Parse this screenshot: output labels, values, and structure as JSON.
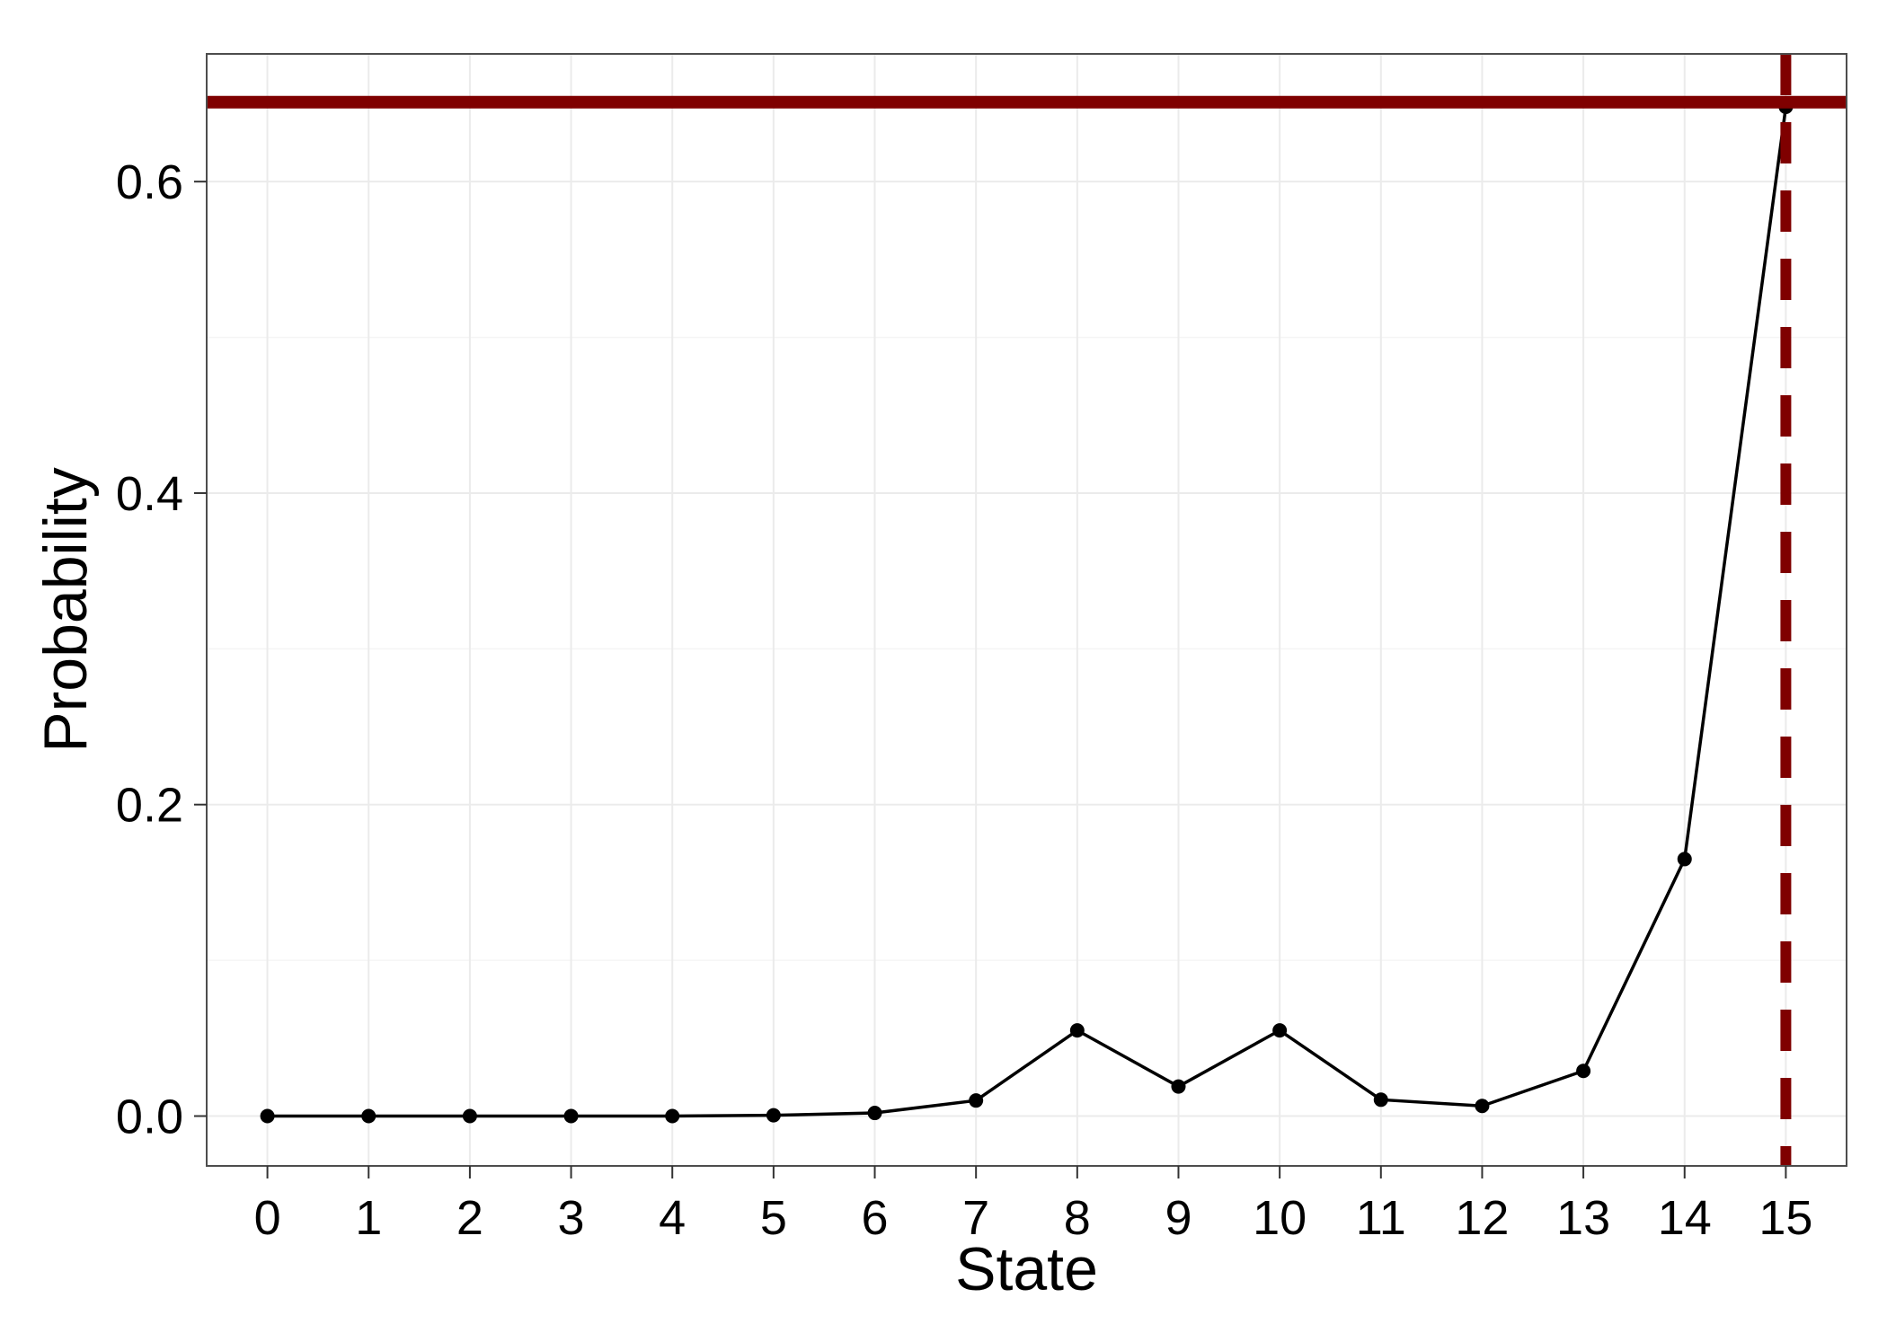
{
  "chart_data": {
    "type": "line",
    "xlabel": "State",
    "ylabel": "Probability",
    "x": [
      0,
      1,
      2,
      3,
      4,
      5,
      6,
      7,
      8,
      9,
      10,
      11,
      12,
      13,
      14,
      15
    ],
    "series": [
      {
        "values": [
          0.0,
          0.0,
          0.0,
          0.0,
          0.0,
          0.0005,
          0.002,
          0.01,
          0.055,
          0.019,
          0.055,
          0.0105,
          0.0065,
          0.029,
          0.165,
          0.648
        ],
        "color": "#000000",
        "markers": true
      }
    ],
    "reference_lines": [
      {
        "orientation": "horizontal",
        "value": 0.651,
        "style": "solid",
        "color": "#7f0000"
      },
      {
        "orientation": "vertical",
        "value": 15,
        "style": "dashed",
        "color": "#7f0000"
      }
    ],
    "xlim": [
      -0.6,
      15.6
    ],
    "ylim": [
      -0.032,
      0.682
    ],
    "x_ticks": [
      "0",
      "1",
      "2",
      "3",
      "4",
      "5",
      "6",
      "7",
      "8",
      "9",
      "10",
      "11",
      "12",
      "13",
      "14",
      "15"
    ],
    "y_ticks": [
      "0.0",
      "0.2",
      "0.4",
      "0.6"
    ],
    "y_tick_values": [
      0.0,
      0.2,
      0.4,
      0.6
    ],
    "y_minor_values": [
      0.1,
      0.3,
      0.5
    ],
    "grid": true,
    "panel_background": "#ffffff",
    "grid_color": "#ebebeb"
  }
}
